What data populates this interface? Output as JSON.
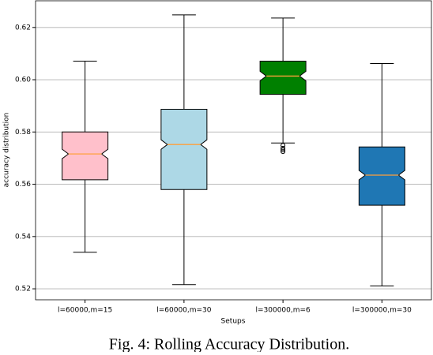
{
  "chart_data": {
    "type": "box",
    "caption": "Fig. 4: Rolling Accuracy Distribution.",
    "xlabel": "Setups",
    "ylabel": "accuracy distribution",
    "categories": [
      "l=60000,m=15",
      "l=60000,m=30",
      "l=300000,m=6",
      "l=300000,m=30"
    ],
    "boxes": [
      {
        "color": "#ffc0cb",
        "whislo": 0.534,
        "q1": 0.5617,
        "med": 0.5716,
        "q3": 0.58,
        "whishi": 0.6071,
        "fliers": []
      },
      {
        "color": "#add8e6",
        "whislo": 0.5216,
        "q1": 0.558,
        "med": 0.5752,
        "q3": 0.5887,
        "whishi": 0.6248,
        "fliers": []
      },
      {
        "color": "#008000",
        "whislo": 0.5758,
        "q1": 0.5944,
        "med": 0.6014,
        "q3": 0.6071,
        "whishi": 0.6236,
        "fliers": [
          0.5749,
          0.5738,
          0.5731,
          0.5725
        ]
      },
      {
        "color": "#1f77b4",
        "whislo": 0.5211,
        "q1": 0.552,
        "med": 0.5635,
        "q3": 0.5743,
        "whishi": 0.6062,
        "fliers": []
      }
    ],
    "median_color": "#ff9f3a",
    "ylim": [
      0.5158,
      0.6302
    ],
    "yticks": [
      0.52,
      0.54,
      0.56,
      0.58,
      0.6,
      0.62
    ],
    "ytick_labels": [
      "0.52",
      "0.54",
      "0.56",
      "0.58",
      "0.60",
      "0.62"
    ],
    "grid": true
  }
}
